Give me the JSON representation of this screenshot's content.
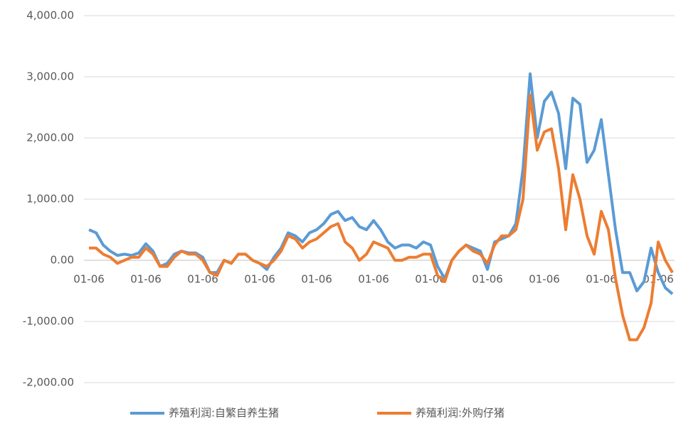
{
  "chart_data": {
    "type": "line",
    "categories": [
      "01-06",
      null,
      null,
      null,
      null,
      null,
      null,
      null,
      "01-06",
      null,
      null,
      null,
      null,
      null,
      null,
      null,
      "01-06",
      null,
      null,
      null,
      null,
      null,
      null,
      null,
      "01-06",
      null,
      null,
      null,
      null,
      null,
      null,
      null,
      "01-06",
      null,
      null,
      null,
      null,
      null,
      null,
      null,
      "01-06",
      null,
      null,
      null,
      null,
      null,
      null,
      null,
      "01-06",
      null,
      null,
      null,
      null,
      null,
      null,
      null,
      "01-06",
      null,
      null,
      null,
      null,
      null,
      null,
      null,
      "01-06",
      null,
      null,
      null,
      null,
      null,
      null,
      null,
      "01-06",
      null,
      null,
      null,
      null,
      null,
      null,
      null,
      "01-06",
      null,
      null
    ],
    "series": [
      {
        "name": "养殖利润:自繁自养生猪",
        "color": "#5b9bd5",
        "values": [
          500,
          450,
          250,
          150,
          80,
          100,
          80,
          120,
          270,
          150,
          -100,
          -50,
          100,
          150,
          120,
          120,
          50,
          -200,
          -200,
          0,
          -50,
          100,
          100,
          0,
          -50,
          -150,
          50,
          200,
          450,
          400,
          300,
          450,
          500,
          600,
          750,
          800,
          650,
          700,
          550,
          500,
          650,
          500,
          300,
          200,
          250,
          250,
          200,
          300,
          250,
          -100,
          -300,
          0,
          150,
          250,
          200,
          150,
          -150,
          300,
          350,
          400,
          600,
          1500,
          3050,
          2000,
          2600,
          2750,
          2400,
          1500,
          2650,
          2550,
          1600,
          1800,
          2300,
          1400,
          500,
          -200,
          -200,
          -500,
          -350,
          200,
          -200,
          -450,
          -550
        ]
      },
      {
        "name": "养殖利润:外购仔猪",
        "color": "#ed7d31",
        "values": [
          200,
          200,
          100,
          50,
          -50,
          0,
          50,
          50,
          200,
          100,
          -100,
          -100,
          50,
          150,
          100,
          100,
          0,
          -200,
          -250,
          0,
          -50,
          100,
          100,
          0,
          -50,
          -100,
          0,
          150,
          400,
          350,
          200,
          300,
          350,
          450,
          550,
          600,
          300,
          200,
          0,
          100,
          300,
          250,
          200,
          0,
          0,
          50,
          50,
          100,
          100,
          -250,
          -350,
          0,
          150,
          250,
          150,
          100,
          -50,
          250,
          400,
          400,
          500,
          1000,
          2700,
          1800,
          2100,
          2150,
          1500,
          500,
          1400,
          1000,
          400,
          100,
          800,
          500,
          -300,
          -900,
          -1300,
          -1300,
          -1100,
          -700,
          300,
          0,
          -200
        ]
      }
    ],
    "ylim": [
      -2000,
      4000
    ],
    "yticks": [
      {
        "value": -2000,
        "label": "-2,000.00"
      },
      {
        "value": -1000,
        "label": "-1,000.00"
      },
      {
        "value": 0,
        "label": "0.00"
      },
      {
        "value": 1000,
        "label": "1,000.00"
      },
      {
        "value": 2000,
        "label": "2,000.00"
      },
      {
        "value": 3000,
        "label": "3,000.00"
      },
      {
        "value": 4000,
        "label": "4,000.00"
      }
    ],
    "grid": true,
    "legend": "bottom"
  }
}
